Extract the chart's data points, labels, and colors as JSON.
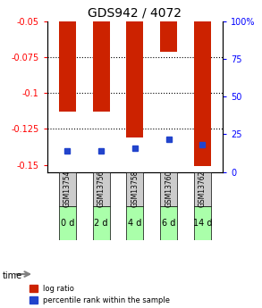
{
  "title": "GDS942 / 4072",
  "categories": [
    "GSM13754",
    "GSM13756",
    "GSM13758",
    "GSM13760",
    "GSM13762"
  ],
  "time_labels": [
    "0 d",
    "2 d",
    "4 d",
    "6 d",
    "14 d"
  ],
  "log_ratios": [
    -0.113,
    -0.113,
    -0.131,
    -0.071,
    -0.151
  ],
  "percentile_ranks": [
    14,
    14,
    16,
    22,
    18
  ],
  "ylim_left": [
    -0.155,
    -0.05
  ],
  "ylim_right": [
    0,
    100
  ],
  "yticks_left": [
    -0.15,
    -0.125,
    -0.1,
    -0.075,
    -0.05
  ],
  "ytick_labels_left": [
    "-0.15",
    "-0.125",
    "-0.1",
    "-0.075",
    "-0.05"
  ],
  "yticks_right": [
    0,
    25,
    50,
    75,
    100
  ],
  "ytick_labels_right": [
    "0",
    "25",
    "50",
    "75",
    "100%"
  ],
  "bar_color": "#cc2200",
  "dot_color": "#2244cc",
  "bar_width": 0.5,
  "grid_color": "#000000",
  "bg_color_gsm": "#cccccc",
  "bg_color_time": "#aaffaa",
  "legend_items": [
    "log ratio",
    "percentile rank within the sample"
  ],
  "legend_colors": [
    "#cc2200",
    "#2244cc"
  ]
}
